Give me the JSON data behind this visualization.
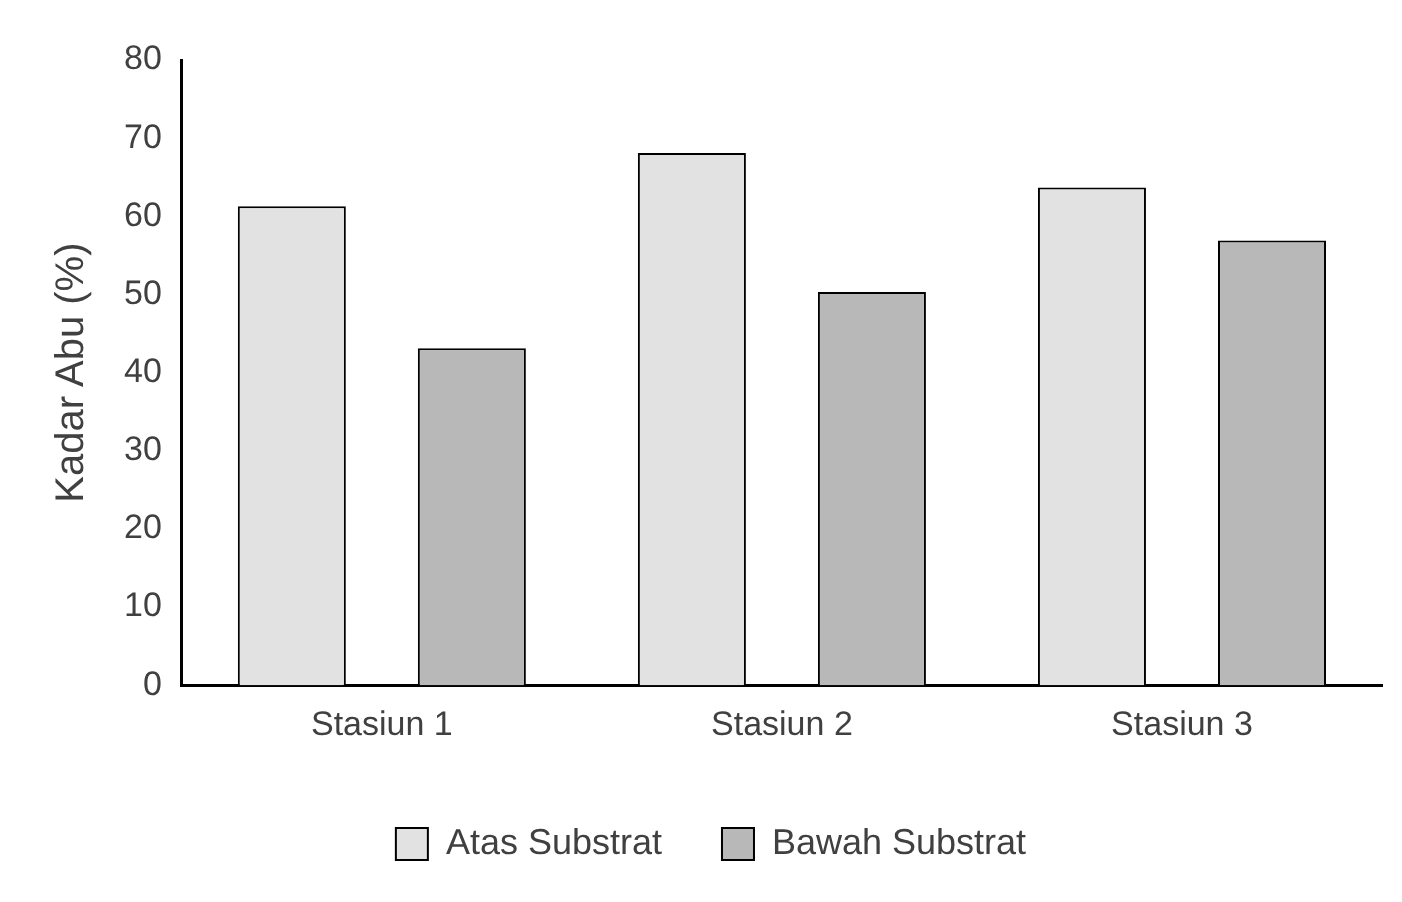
{
  "chart_data": {
    "type": "bar",
    "ylabel": "Kadar Abu (%)",
    "categories": [
      "Stasiun 1",
      "Stasiun 2",
      "Stasiun 3"
    ],
    "series": [
      {
        "name": "Atas Substrat",
        "color": "#e2e2e2",
        "values": [
          61.3,
          68.1,
          63.7
        ]
      },
      {
        "name": "Bawah Substrat",
        "color": "#b8b8b8",
        "values": [
          43.1,
          50.3,
          56.9
        ]
      }
    ],
    "ylim": [
      0,
      80
    ],
    "yticks": [
      0,
      10,
      20,
      30,
      40,
      50,
      60,
      70,
      80
    ],
    "grid": false,
    "legend": "bottom"
  }
}
